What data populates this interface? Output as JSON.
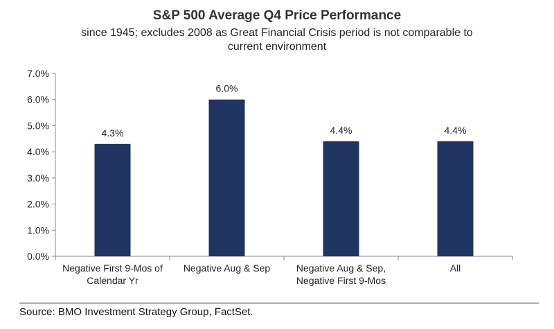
{
  "chart_data": {
    "type": "bar",
    "title": "S&P 500 Average Q4 Price Performance",
    "subtitle_lines": [
      "since 1945; excludes 2008 as Great Financial Crisis period is not comparable to",
      "current environment"
    ],
    "categories": [
      [
        "Negative First 9-Mos of",
        "Calendar Yr"
      ],
      [
        "Negative Aug & Sep"
      ],
      [
        "Negative Aug & Sep,",
        "Negative First 9-Mos"
      ],
      [
        "All"
      ]
    ],
    "values": [
      4.3,
      6.0,
      4.4,
      4.4
    ],
    "data_labels": [
      "4.3%",
      "6.0%",
      "4.4%",
      "4.4%"
    ],
    "yticks": [
      "0.0%",
      "1.0%",
      "2.0%",
      "3.0%",
      "4.0%",
      "5.0%",
      "6.0%",
      "7.0%"
    ],
    "ylim": [
      0,
      7
    ],
    "xlabel": "",
    "ylabel": "",
    "bar_color": "#1f3461",
    "grid": false
  },
  "source_text": "Source: BMO Investment Strategy Group, FactSet."
}
